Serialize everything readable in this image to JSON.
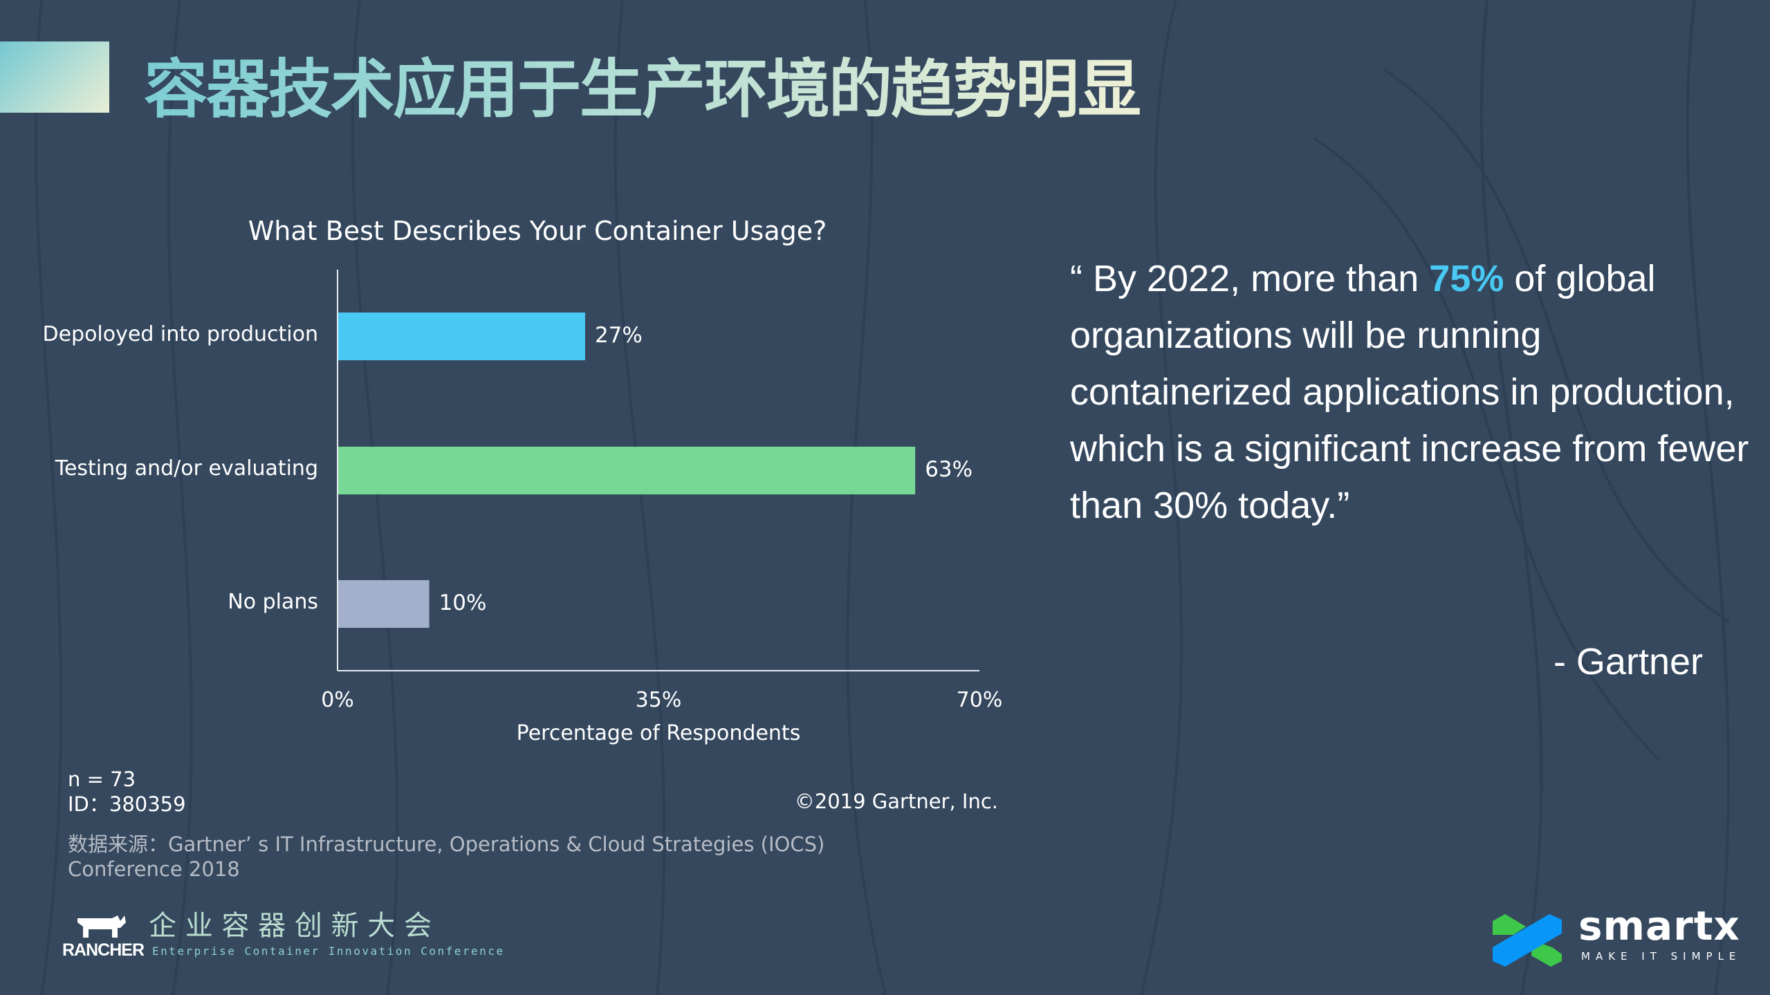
{
  "slide_title": "容器技术应用于生产环境的趋势明显",
  "chart_data": {
    "type": "bar",
    "orientation": "horizontal",
    "title": "What Best Describes Your Container Usage?",
    "categories": [
      "Depoloyed into production",
      "Testing and/or evaluating",
      "No plans"
    ],
    "values": [
      27,
      63,
      10
    ],
    "data_labels": [
      "27%",
      "63%",
      "10%"
    ],
    "colors": [
      "#4ac8f4",
      "#77d895",
      "#a3b1cc"
    ],
    "xlabel": "Percentage of Respondents",
    "ylabel": "",
    "xlim": [
      0,
      70
    ],
    "x_ticks": [
      "0%",
      "35%",
      "70%"
    ],
    "grid": false
  },
  "notes": {
    "n": "n = 73",
    "id": "ID：380359",
    "source_line1": "数据来源：Gartner’ s IT Infrastructure, Operations & Cloud Strategies (IOCS)",
    "source_line2": "Conference 2018",
    "copyright": "©2019 Gartner, Inc."
  },
  "quote": {
    "before": "“ By 2022, more than ",
    "highlight": "75%",
    "after": " of global organizations will be running containerized applications in production, which is a significant increase from fewer than 30% today.”",
    "attribution": "- Gartner",
    "highlight_color": "#4ac8f4"
  },
  "footer": {
    "rancher": "RANCHER",
    "conference_cn": "企 业 容 器 创 新 大 会",
    "conference_en": "Enterprise Container Innovation Conference",
    "smartx": "smartx",
    "smartx_tagline": "MAKE IT SIMPLE"
  }
}
